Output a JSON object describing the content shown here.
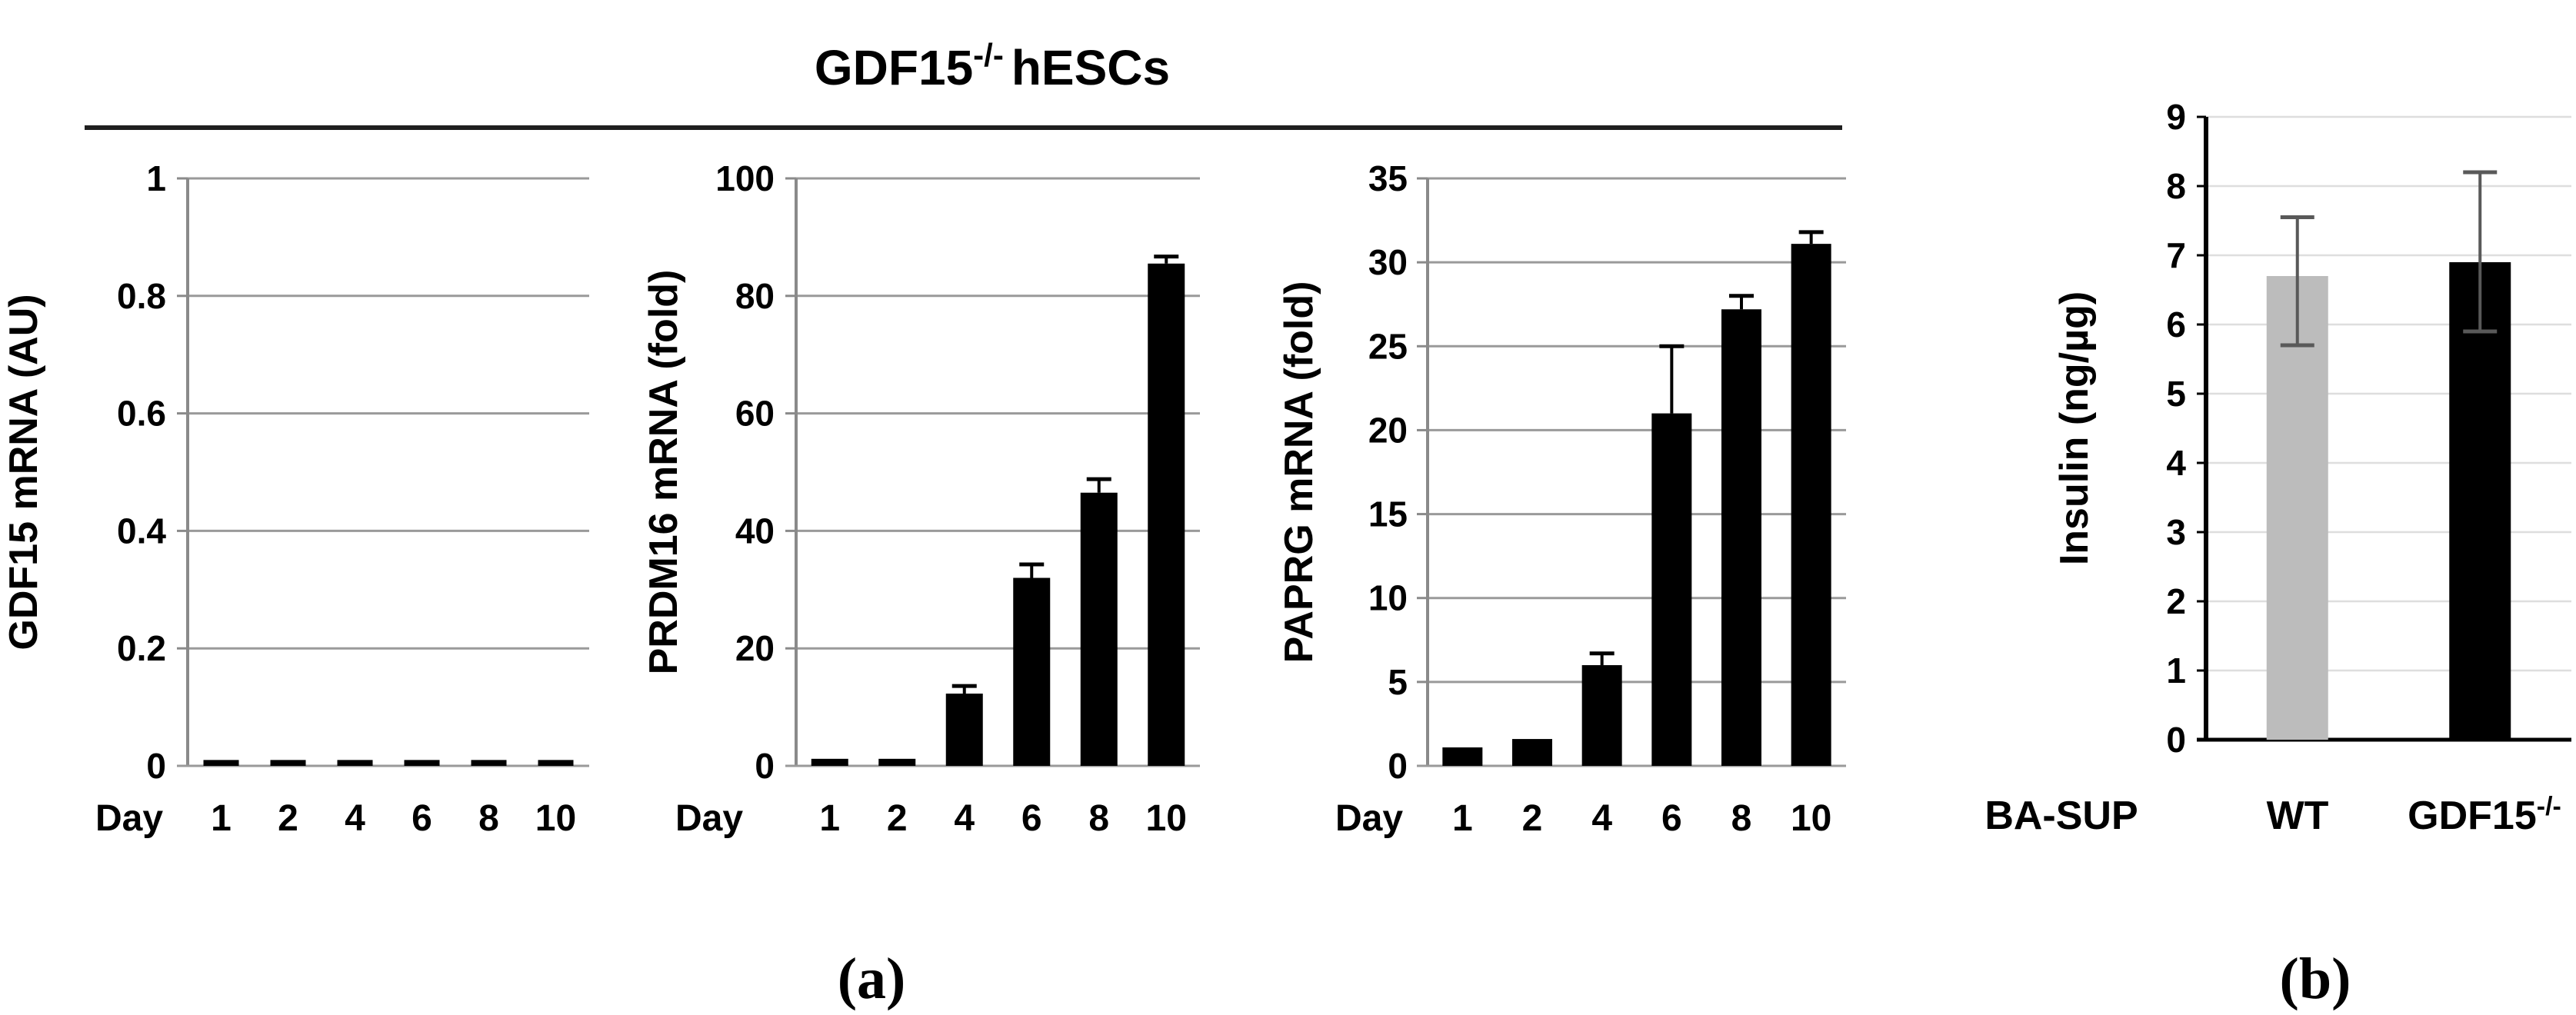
{
  "figure": {
    "title_main": "GDF15",
    "title_sup": "-/-",
    "title_rest": "hESCs",
    "ko_label_main": "GDF15",
    "ko_label_sup": "-/-"
  },
  "panels": {
    "a_label": "(a)",
    "b_label": "(b)"
  },
  "chart_data": [
    {
      "type": "bar",
      "title": "GDF15-/- hESCs",
      "ylabel": "GDF15 mRNA (AU)",
      "x_prefix": "Day",
      "categories": [
        "1",
        "2",
        "4",
        "6",
        "8",
        "10"
      ],
      "values": [
        0.01,
        0.01,
        0.01,
        0.01,
        0.01,
        0.01
      ],
      "errors_up": [
        0,
        0,
        0,
        0,
        0,
        0
      ],
      "ylim": [
        0,
        1
      ],
      "yticks": [
        "0",
        "0.2",
        "0.4",
        "0.6",
        "0.8",
        "1"
      ],
      "grid": true,
      "bar_color": "#000000"
    },
    {
      "type": "bar",
      "title": "GDF15-/- hESCs",
      "ylabel": "PRDM16 mRNA (fold)",
      "x_prefix": "Day",
      "categories": [
        "1",
        "2",
        "4",
        "6",
        "8",
        "10"
      ],
      "values": [
        1.2,
        1.2,
        12.3,
        32,
        46.5,
        85.5
      ],
      "errors_up": [
        0,
        0,
        1.3,
        2.3,
        2.3,
        1.2
      ],
      "ylim": [
        0,
        100
      ],
      "yticks": [
        "0",
        "20",
        "40",
        "60",
        "80",
        "100"
      ],
      "grid": true,
      "bar_color": "#000000"
    },
    {
      "type": "bar",
      "title": "GDF15-/- hESCs",
      "ylabel": "PAPRG mRNA (fold)",
      "x_prefix": "Day",
      "categories": [
        "1",
        "2",
        "4",
        "6",
        "8",
        "10"
      ],
      "values": [
        1.1,
        1.6,
        6.0,
        21.0,
        27.2,
        31.1
      ],
      "errors_up": [
        0,
        0,
        0.7,
        4.0,
        0.8,
        0.7
      ],
      "ylim": [
        0,
        35
      ],
      "yticks": [
        "0",
        "5",
        "10",
        "15",
        "20",
        "25",
        "30",
        "35"
      ],
      "grid": true,
      "bar_color": "#000000"
    },
    {
      "type": "bar",
      "ylabel": "Insulin (ng/µg)",
      "x_prefix": "BA-SUP",
      "categories": [
        "WT",
        "GDF15-/-"
      ],
      "values": [
        6.7,
        6.9
      ],
      "errors_up": [
        0.85,
        1.3
      ],
      "errors_down": [
        1.0,
        1.0
      ],
      "ylim": [
        0,
        9
      ],
      "yticks": [
        "0",
        "1",
        "2",
        "3",
        "4",
        "5",
        "6",
        "7",
        "8",
        "9"
      ],
      "grid": true,
      "bar_colors": [
        "#bcbcbc",
        "#000000"
      ]
    }
  ]
}
